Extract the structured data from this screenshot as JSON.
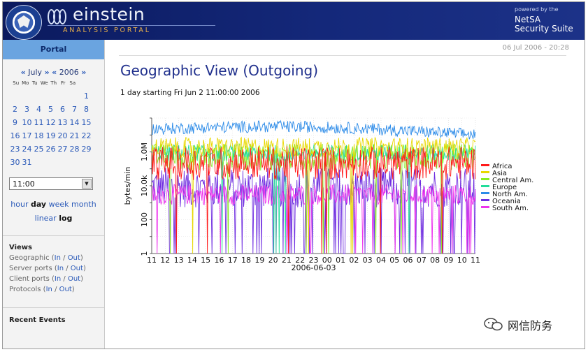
{
  "header": {
    "app_name": "einstein",
    "app_subtitle": "ANALYSIS PORTAL",
    "powered_by": "powered by the",
    "suite_line1": "NetSA",
    "suite_line2": "Security Suite"
  },
  "sidebar": {
    "portal_tab": "Portal",
    "calendar": {
      "prev_month": "«",
      "month": "July",
      "next_month": "»",
      "prev_year": "«",
      "year": "2006",
      "next_year": "»",
      "weekdays": [
        "Su",
        "Mo",
        "Tu",
        "We",
        "Th",
        "Fr",
        "Sa"
      ],
      "weeks": [
        [
          "",
          "",
          "",
          "",
          "",
          "",
          "1"
        ],
        [
          "2",
          "3",
          "4",
          "5",
          "6",
          "7",
          "8"
        ],
        [
          "9",
          "10",
          "11",
          "12",
          "13",
          "14",
          "15"
        ],
        [
          "16",
          "17",
          "18",
          "19",
          "20",
          "21",
          "22"
        ],
        [
          "23",
          "24",
          "25",
          "26",
          "27",
          "28",
          "29"
        ],
        [
          "30",
          "31",
          "",
          "",
          "",
          "",
          ""
        ]
      ]
    },
    "time_value": "11:00",
    "ranges": {
      "hour": "hour",
      "day": "day",
      "week": "week",
      "month": "month",
      "selected": "day"
    },
    "scales": {
      "linear": "linear",
      "log": "log",
      "selected": "log"
    },
    "views": {
      "title": "Views",
      "items": [
        {
          "label": "Geographic",
          "in": "In",
          "out": "Out"
        },
        {
          "label": "Server ports",
          "in": "In",
          "out": "Out"
        },
        {
          "label": "Client ports",
          "in": "In",
          "out": "Out"
        },
        {
          "label": "Protocols",
          "in": "In",
          "out": "Out"
        }
      ]
    },
    "recent_events": "Recent Events"
  },
  "main": {
    "datetime": "06 Jul 2006 - 20:28",
    "title": "Geographic View (Outgoing)",
    "subtitle": "1 day starting Fri Jun 2 11:00:00 2006"
  },
  "watermark": {
    "text": "网信防务"
  },
  "chart_data": {
    "type": "line",
    "ylabel": "bytes/min",
    "xlabel": "2006-06-03",
    "yscale": "log",
    "ylim": [
      1,
      100000000
    ],
    "y_ticks": [
      "1",
      "100",
      "10.0k",
      "1.0M"
    ],
    "x_ticks": [
      "11",
      "12",
      "13",
      "14",
      "15",
      "16",
      "17",
      "18",
      "19",
      "20",
      "21",
      "22",
      "23",
      "00",
      "01",
      "02",
      "03",
      "04",
      "05",
      "06",
      "07",
      "08",
      "09",
      "10",
      "11"
    ],
    "grid": true,
    "legend_position": "right",
    "series": [
      {
        "name": "Africa",
        "color": "#ff1a1a",
        "level": 220000,
        "spread": 1.0,
        "dips": 0.01
      },
      {
        "name": "Asia",
        "color": "#e8d800",
        "level": 1800000,
        "spread": 0.6,
        "dips": 0.01
      },
      {
        "name": "Central Am.",
        "color": "#88ee22",
        "level": 500000,
        "spread": 0.8,
        "dips": 0.02
      },
      {
        "name": "Europe",
        "color": "#22dd99",
        "level": 900000,
        "spread": 0.5,
        "dips": 0.01
      },
      {
        "name": "North Am.",
        "color": "#2c8be8",
        "level": 22000000,
        "spread": 0.35,
        "dips": 0.0
      },
      {
        "name": "Oceania",
        "color": "#6f2de0",
        "level": 8000,
        "spread": 1.2,
        "dips": 0.12
      },
      {
        "name": "South Am.",
        "color": "#ee33ee",
        "level": 3000,
        "spread": 0.6,
        "dips": 0.03
      }
    ]
  }
}
